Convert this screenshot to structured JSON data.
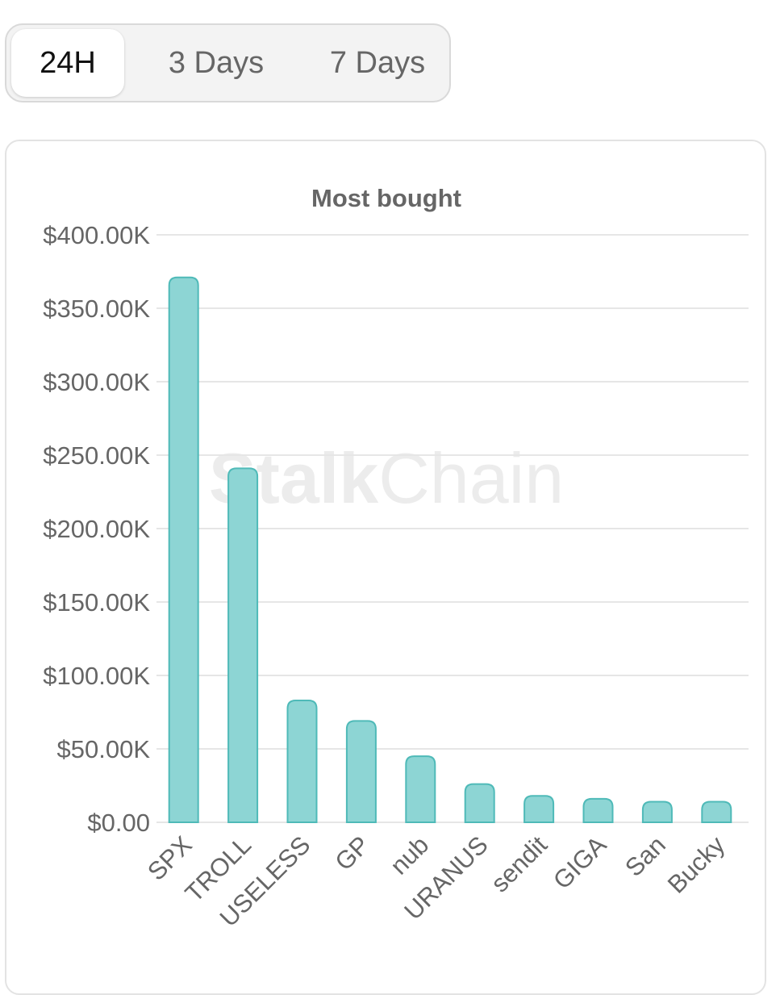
{
  "tabs": [
    {
      "label": "24H",
      "active": true
    },
    {
      "label": "3 Days",
      "active": false
    },
    {
      "label": "7 Days",
      "active": false
    }
  ],
  "watermark": {
    "bold": "Stalk",
    "light": "Chain"
  },
  "colors": {
    "bar_fill": "#8dd5d4",
    "bar_stroke": "#4fbab8",
    "text": "#666666"
  },
  "chart_data": {
    "type": "bar",
    "title": "Most bought",
    "categories": [
      "SPX",
      "TROLL",
      "USELESS",
      "GP",
      "nub",
      "URANUS",
      "sendit",
      "GIGA",
      "San",
      "Bucky"
    ],
    "values": [
      371000,
      241000,
      83000,
      69000,
      45000,
      26000,
      18000,
      16000,
      14000,
      14000
    ],
    "ylim": [
      0,
      400000
    ],
    "yticks": [
      0,
      50000,
      100000,
      150000,
      200000,
      250000,
      300000,
      350000,
      400000
    ],
    "ytick_labels": [
      "$0.00",
      "$50.00K",
      "$100.00K",
      "$150.00K",
      "$200.00K",
      "$250.00K",
      "$300.00K",
      "$350.00K",
      "$400.00K"
    ],
    "grid": true,
    "legend": "none"
  }
}
